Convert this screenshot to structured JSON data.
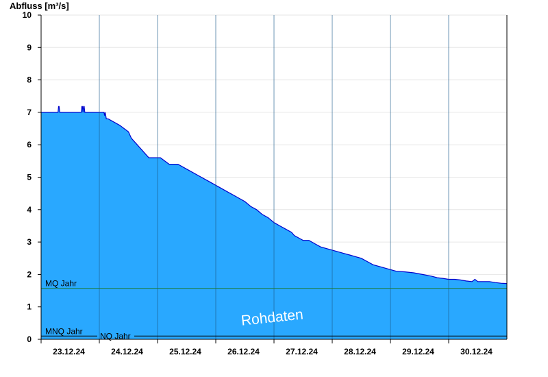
{
  "chart_data": {
    "type": "area",
    "ylabel": "Abfluss [m³/s]",
    "ylim": [
      0,
      10
    ],
    "yticks": [
      "0",
      "1",
      "2",
      "3",
      "4",
      "5",
      "6",
      "7",
      "8",
      "9",
      "10"
    ],
    "xlim": [
      "22.12.24 12:00",
      "31.12.24 00:00"
    ],
    "day_labels": [
      "23.12.24",
      "24.12.24",
      "25.12.24",
      "26.12.24",
      "27.12.24",
      "28.12.24",
      "29.12.24",
      "30.12.24"
    ],
    "day_boundaries": [
      "23.12.24 12:00",
      "24.12.24 12:00",
      "25.12.24 12:00",
      "26.12.24 12:00",
      "27.12.24 12:00",
      "28.12.24 12:00",
      "29.12.24 12:00",
      "30.12.24 12:00"
    ],
    "grid": true,
    "fill_color": "#29a8ff",
    "line_color": "#0000cc",
    "series": [
      {
        "x": [
          0,
          0.29,
          0.3,
          0.31,
          0.32,
          0.33,
          0.69,
          0.7,
          0.71,
          0.72,
          0.73,
          0.74,
          0.75,
          0.76,
          1.0,
          1.08,
          1.09,
          1.1,
          1.11,
          1.12,
          1.15,
          1.35,
          1.5,
          1.55,
          1.65,
          1.75,
          1.85,
          1.95,
          2.05,
          2.2,
          2.35,
          2.5,
          2.7,
          2.85,
          3.05,
          3.2,
          3.35,
          3.5,
          3.6,
          3.7,
          3.8,
          3.9,
          4.0,
          4.1,
          4.2,
          4.3,
          4.35,
          4.4,
          4.45,
          4.5,
          4.6,
          4.7,
          4.8,
          4.9,
          5.0,
          5.1,
          5.2,
          5.3,
          5.4,
          5.5,
          5.6,
          5.7,
          5.8,
          5.9,
          6.0,
          6.1,
          6.25,
          6.4,
          6.55,
          6.7,
          6.8,
          6.9,
          7.0,
          7.1,
          7.2,
          7.3,
          7.4,
          7.45,
          7.5,
          7.6,
          7.7,
          7.8,
          7.9,
          8.0
        ],
        "y": [
          7.0,
          7.0,
          7.18,
          7.18,
          7.0,
          7.0,
          7.0,
          7.18,
          7.18,
          7.0,
          7.18,
          7.18,
          7.0,
          7.0,
          7.0,
          7.0,
          6.9,
          7.0,
          6.9,
          6.8,
          6.8,
          6.6,
          6.4,
          6.2,
          6.0,
          5.8,
          5.6,
          5.6,
          5.6,
          5.4,
          5.4,
          5.25,
          5.05,
          4.9,
          4.7,
          4.55,
          4.4,
          4.25,
          4.1,
          4.0,
          3.85,
          3.75,
          3.6,
          3.5,
          3.4,
          3.3,
          3.2,
          3.15,
          3.1,
          3.05,
          3.05,
          2.95,
          2.85,
          2.8,
          2.75,
          2.7,
          2.65,
          2.6,
          2.55,
          2.5,
          2.4,
          2.3,
          2.25,
          2.2,
          2.15,
          2.1,
          2.08,
          2.05,
          2.0,
          1.95,
          1.9,
          1.88,
          1.85,
          1.85,
          1.83,
          1.8,
          1.78,
          1.85,
          1.78,
          1.78,
          1.78,
          1.75,
          1.73,
          1.72
        ]
      }
    ],
    "reference_lines": [
      {
        "label": "MQ Jahr",
        "value": 1.57,
        "color": "#1a7a3a"
      },
      {
        "label": "MNQ Jahr",
        "value": 0.1,
        "color": "#000000"
      },
      {
        "label": "NQ Jahr",
        "value": 0.1,
        "color": "#000000"
      }
    ],
    "annotation": "Rohdaten"
  }
}
